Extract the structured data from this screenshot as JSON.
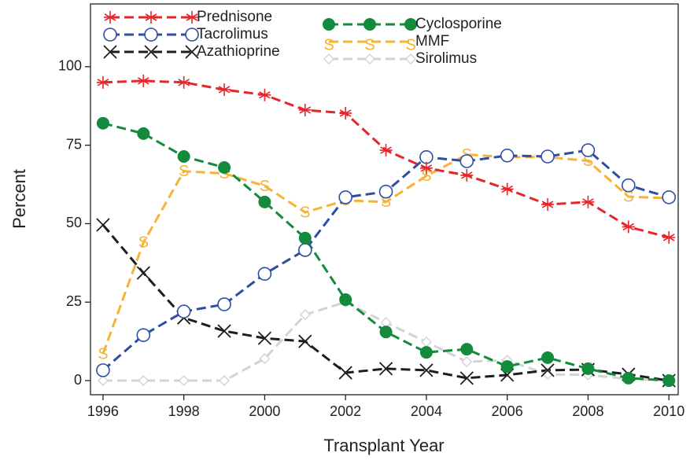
{
  "chart_data": {
    "type": "line",
    "x_label": "Transplant Year",
    "y_label": "Percent",
    "x": [
      1996,
      1997,
      1998,
      1999,
      2000,
      2001,
      2002,
      2003,
      2004,
      2005,
      2006,
      2007,
      2008,
      2009,
      2010
    ],
    "series": [
      {
        "name": "Prednisone",
        "color": "#e5262b",
        "marker": "star",
        "values": [
          95,
          95.5,
          95,
          92.7,
          91,
          86.2,
          85.2,
          73.4,
          67.7,
          65.4,
          61,
          56.1,
          56.9,
          49,
          45.6
        ]
      },
      {
        "name": "Tacrolimus",
        "color": "#2c4ea3",
        "marker": "open-circle",
        "values": [
          3.3,
          14.5,
          22,
          24.3,
          34,
          41.6,
          58.4,
          60.2,
          71.2,
          69.9,
          71.7,
          71.4,
          73.4,
          62.2,
          58.4
        ]
      },
      {
        "name": "Azathioprine",
        "color": "#1e1e1e",
        "marker": "x",
        "values": [
          49.6,
          34.3,
          20,
          15.8,
          13.5,
          12.5,
          2.5,
          3.8,
          3.3,
          0.8,
          1.8,
          3.3,
          3.5,
          2,
          0
        ]
      },
      {
        "name": "Cyclosporine",
        "color": "#138a3c",
        "marker": "filled-circle",
        "values": [
          82,
          78.7,
          71.4,
          67.9,
          56.9,
          45.4,
          25.8,
          15.5,
          9,
          10,
          4.5,
          7.3,
          3.8,
          0.8,
          0
        ]
      },
      {
        "name": "MMF",
        "color": "#f7b333",
        "marker": "S",
        "values": [
          8.5,
          44,
          66.7,
          66,
          62,
          53.6,
          57.4,
          56.9,
          65.2,
          72,
          71.2,
          71.2,
          70,
          58.6,
          58.1
        ]
      },
      {
        "name": "Sirolimus",
        "color": "#d3d3d3",
        "marker": "diamond",
        "values": [
          0,
          0,
          0,
          0,
          7,
          21,
          25,
          18.5,
          12.3,
          6,
          6.5,
          2,
          1.8,
          0.5,
          0
        ]
      }
    ],
    "xlim": [
      1995.69,
      2010.23
    ],
    "ylim": [
      -4.5,
      120
    ],
    "xticks": [
      1996,
      1998,
      2000,
      2002,
      2004,
      2006,
      2008,
      2010
    ],
    "yticks": [
      0,
      25,
      50,
      75,
      100
    ]
  }
}
